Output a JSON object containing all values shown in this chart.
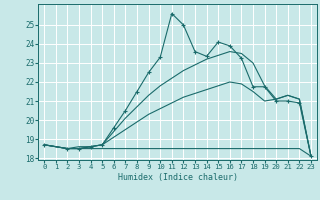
{
  "title": "",
  "xlabel": "Humidex (Indice chaleur)",
  "bg_color": "#c8e8e8",
  "grid_color": "#ffffff",
  "line_color": "#1a6b6b",
  "xlim": [
    -0.5,
    23.5
  ],
  "ylim": [
    17.9,
    26.1
  ],
  "xticks": [
    0,
    1,
    2,
    3,
    4,
    5,
    6,
    7,
    8,
    9,
    10,
    11,
    12,
    13,
    14,
    15,
    16,
    17,
    18,
    19,
    20,
    21,
    22,
    23
  ],
  "yticks": [
    18,
    19,
    20,
    21,
    22,
    23,
    24,
    25
  ],
  "series": [
    {
      "x": [
        0,
        1,
        2,
        3,
        4,
        5,
        6,
        7,
        8,
        9,
        10,
        11,
        12,
        13,
        14,
        15,
        16,
        17,
        18,
        19,
        20,
        21,
        22,
        23
      ],
      "y": [
        18.7,
        18.6,
        18.5,
        18.5,
        18.5,
        18.5,
        18.5,
        18.5,
        18.5,
        18.5,
        18.5,
        18.5,
        18.5,
        18.5,
        18.5,
        18.5,
        18.5,
        18.5,
        18.5,
        18.5,
        18.5,
        18.5,
        18.5,
        18.1
      ],
      "marker": false
    },
    {
      "x": [
        0,
        1,
        2,
        3,
        4,
        5,
        6,
        7,
        8,
        9,
        10,
        11,
        12,
        13,
        14,
        15,
        16,
        17,
        18,
        19,
        20,
        21,
        22,
        23
      ],
      "y": [
        18.7,
        18.6,
        18.5,
        18.5,
        18.6,
        18.7,
        19.1,
        19.5,
        19.9,
        20.3,
        20.6,
        20.9,
        21.2,
        21.4,
        21.6,
        21.8,
        22.0,
        21.9,
        21.5,
        21.0,
        21.1,
        21.3,
        21.1,
        18.1
      ],
      "marker": false
    },
    {
      "x": [
        0,
        1,
        2,
        3,
        4,
        5,
        6,
        7,
        8,
        9,
        10,
        11,
        12,
        13,
        14,
        15,
        16,
        17,
        18,
        19,
        20,
        21,
        22,
        23
      ],
      "y": [
        18.7,
        18.6,
        18.5,
        18.6,
        18.6,
        18.7,
        19.4,
        20.1,
        20.7,
        21.3,
        21.8,
        22.2,
        22.6,
        22.9,
        23.2,
        23.4,
        23.6,
        23.5,
        23.0,
        21.8,
        21.1,
        21.3,
        21.1,
        18.1
      ],
      "marker": false
    },
    {
      "x": [
        0,
        2,
        3,
        4,
        5,
        6,
        7,
        8,
        9,
        10,
        11,
        12,
        13,
        14,
        15,
        16,
        17,
        18,
        19,
        20,
        21,
        22,
        23
      ],
      "y": [
        18.7,
        18.5,
        18.5,
        18.6,
        18.7,
        19.6,
        20.5,
        21.5,
        22.5,
        23.3,
        25.6,
        25.0,
        23.6,
        23.35,
        24.1,
        23.9,
        23.25,
        21.75,
        21.75,
        21.0,
        21.0,
        20.9,
        18.1
      ],
      "marker": true
    }
  ]
}
